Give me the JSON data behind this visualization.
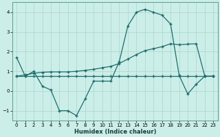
{
  "xlabel": "Humidex (Indice chaleur)",
  "bg_color": "#cceee8",
  "line_color": "#1a6b6b",
  "grid_color": "#b0d8d0",
  "xlim": [
    -0.5,
    23.5
  ],
  "ylim": [
    -1.5,
    4.5
  ],
  "yticks": [
    -1,
    0,
    1,
    2,
    3,
    4
  ],
  "xticks": [
    0,
    1,
    2,
    3,
    4,
    5,
    6,
    7,
    8,
    9,
    10,
    11,
    12,
    13,
    14,
    15,
    16,
    17,
    18,
    19,
    20,
    21,
    22,
    23
  ],
  "line1_x": [
    0,
    1,
    2,
    3,
    4,
    5,
    6,
    7,
    8,
    9,
    10,
    11,
    12,
    13,
    14,
    15,
    16,
    17,
    18,
    19,
    20,
    21,
    22,
    23
  ],
  "line1_y": [
    1.7,
    0.75,
    1.0,
    0.25,
    0.05,
    -1.0,
    -1.0,
    -1.25,
    -0.4,
    0.5,
    0.5,
    0.5,
    1.5,
    3.3,
    4.0,
    4.15,
    4.0,
    3.85,
    3.4,
    0.8,
    -0.15,
    0.35,
    0.75,
    0.75
  ],
  "line2_x": [
    0,
    1,
    2,
    3,
    4,
    5,
    6,
    7,
    8,
    9,
    10,
    11,
    12,
    13,
    14,
    15,
    16,
    17,
    18,
    19,
    20,
    21,
    22,
    23
  ],
  "line2_y": [
    0.75,
    0.75,
    0.75,
    0.75,
    0.75,
    0.75,
    0.75,
    0.75,
    0.75,
    0.75,
    0.75,
    0.75,
    0.75,
    0.75,
    0.75,
    0.75,
    0.75,
    0.75,
    0.75,
    0.75,
    0.75,
    0.75,
    0.75,
    0.75
  ],
  "line3_x": [
    0,
    1,
    2,
    3,
    4,
    5,
    6,
    7,
    8,
    9,
    10,
    11,
    12,
    13,
    14,
    15,
    16,
    17,
    18,
    19,
    20,
    21,
    22,
    23
  ],
  "line3_y": [
    0.75,
    0.82,
    0.9,
    0.95,
    0.97,
    0.97,
    0.97,
    1.0,
    1.05,
    1.1,
    1.18,
    1.25,
    1.4,
    1.62,
    1.85,
    2.05,
    2.15,
    2.25,
    2.4,
    2.35,
    2.38,
    2.4,
    0.75,
    0.75
  ]
}
